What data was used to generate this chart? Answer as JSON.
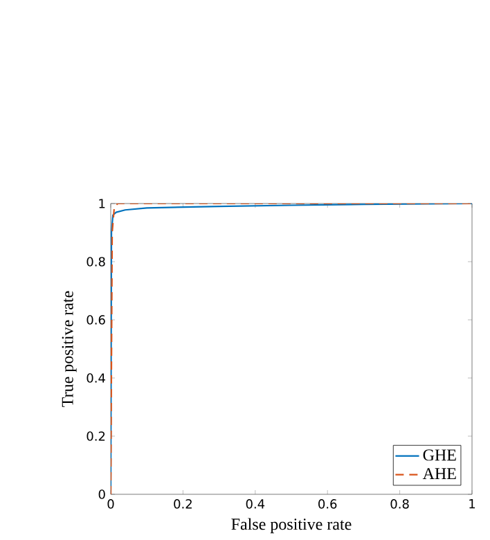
{
  "chart_data": {
    "type": "line",
    "xlabel": "False positive rate",
    "ylabel": "True positive rate",
    "xlim": [
      0,
      1
    ],
    "ylim": [
      0,
      1
    ],
    "xticks": [
      0,
      0.2,
      0.4,
      0.6,
      0.8,
      1
    ],
    "yticks": [
      0,
      0.2,
      0.4,
      0.6,
      0.8,
      1
    ],
    "legend": "bottom right",
    "grid": false,
    "series": [
      {
        "name": "GHE",
        "color": "#0072bd",
        "line_style": "solid",
        "x": [
          0,
          0.002,
          0.006,
          0.015,
          0.04,
          0.1,
          0.3,
          0.5,
          0.7,
          1
        ],
        "values": [
          0,
          0.9,
          0.96,
          0.97,
          0.978,
          0.985,
          0.99,
          0.994,
          0.997,
          1
        ]
      },
      {
        "name": "AHE",
        "color": "#d95319",
        "line_style": "dashed",
        "x": [
          0,
          0.004,
          0.01,
          0.02,
          1
        ],
        "values": [
          0,
          0.9,
          0.99,
          1,
          1
        ]
      }
    ]
  }
}
